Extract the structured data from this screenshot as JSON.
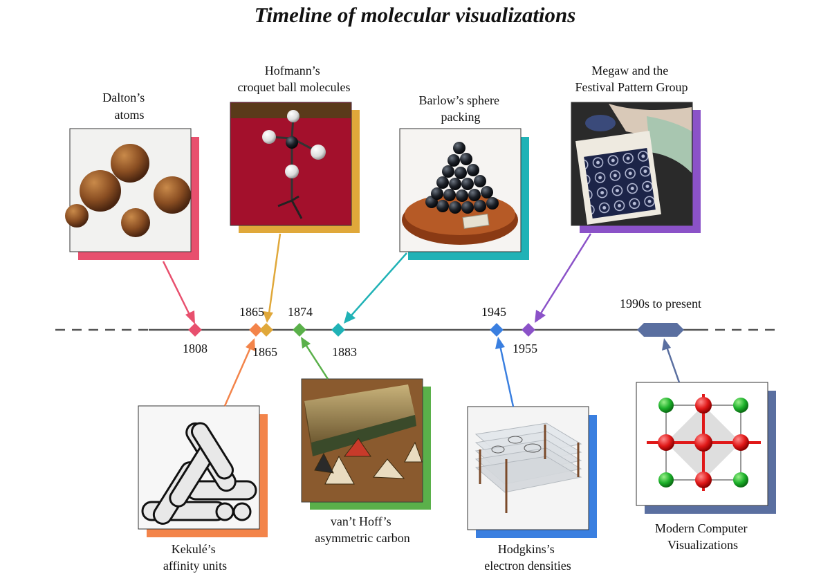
{
  "title": "Timeline of molecular visualizations",
  "years": {
    "dalton": "1808",
    "kekule": "1865",
    "hofmann": "1865",
    "vanthoff": "1874",
    "barlow": "1883",
    "hodgkin": "1945",
    "megaw": "1955",
    "modern": "1990s to present"
  },
  "labels": {
    "dalton": [
      "Dalton’s",
      "atoms"
    ],
    "hofmann": [
      "Hofmann’s",
      "croquet ball molecules"
    ],
    "barlow": [
      "Barlow’s sphere",
      "packing"
    ],
    "megaw": [
      "Megaw and the",
      "Festival Pattern Group"
    ],
    "kekule": [
      "Kekulé’s",
      "affinity units"
    ],
    "vanthoff": [
      "van’t Hoff’s",
      "asymmetric carbon"
    ],
    "hodgkin": [
      "Hodgkins’s",
      "electron densities"
    ],
    "modern": [
      "Modern Computer",
      "Visualizations"
    ]
  },
  "colors": {
    "dalton": "#e8506e",
    "kekule": "#f3844a",
    "hofmann": "#e0a83a",
    "vanthoff": "#5ab04a",
    "barlow": "#20b2b6",
    "hodgkin": "#3a7fe0",
    "megaw": "#8b52c8",
    "modern": "#5a6fa0"
  },
  "icons": [
    "dalton-atoms-photo",
    "croquet-ball-model-photo",
    "sphere-packing-photo",
    "fabric-pattern-photo",
    "affinity-units-engraving",
    "tetrahedra-box-photo",
    "electron-density-stack-photo",
    "crystal-lattice-render"
  ]
}
